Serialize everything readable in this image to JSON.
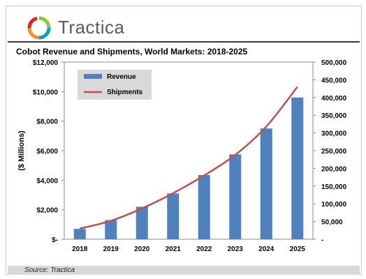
{
  "brand": {
    "name": "Tractica"
  },
  "chart_data": {
    "type": "bar",
    "title": "Cobot Revenue and Shipments, World Markets: 2018-2025",
    "categories": [
      "2018",
      "2019",
      "2020",
      "2021",
      "2022",
      "2023",
      "2024",
      "2025"
    ],
    "series": [
      {
        "name": "Revenue",
        "type": "bar",
        "axis": "left",
        "color": "#4f81bd",
        "values": [
          700,
          1300,
          2200,
          3100,
          4350,
          5750,
          7500,
          9600
        ]
      },
      {
        "name": "Shipments",
        "type": "line",
        "axis": "right",
        "color": "#c0504d",
        "values": [
          30000,
          52000,
          87000,
          130000,
          180000,
          238000,
          318000,
          430000
        ]
      }
    ],
    "ylabel": "($ Millions)",
    "xlabel": "",
    "ylim": [
      0,
      12000
    ],
    "y2lim": [
      0,
      500000
    ],
    "y_ticks": [
      "$-",
      "$2,000",
      "$4,000",
      "$6,000",
      "$8,000",
      "$10,000",
      "$12,000"
    ],
    "y2_ticks": [
      "-",
      "50,000",
      "100,000",
      "150,000",
      "200,000",
      "250,000",
      "300,000",
      "350,000",
      "400,000",
      "450,000",
      "500,000"
    ],
    "legend_position": "top-left",
    "grid": false
  },
  "footer": {
    "source": "Source: Tractica"
  }
}
